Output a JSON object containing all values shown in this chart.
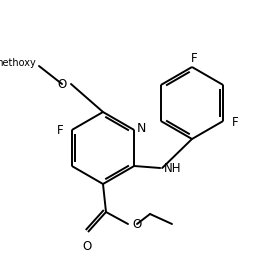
{
  "bg_color": "#ffffff",
  "line_color": "#000000",
  "line_width": 1.4,
  "font_size": 8.5,
  "figsize": [
    2.54,
    2.59
  ],
  "dpi": 100,
  "xlim": [
    0,
    254
  ],
  "ylim": [
    0,
    259
  ]
}
